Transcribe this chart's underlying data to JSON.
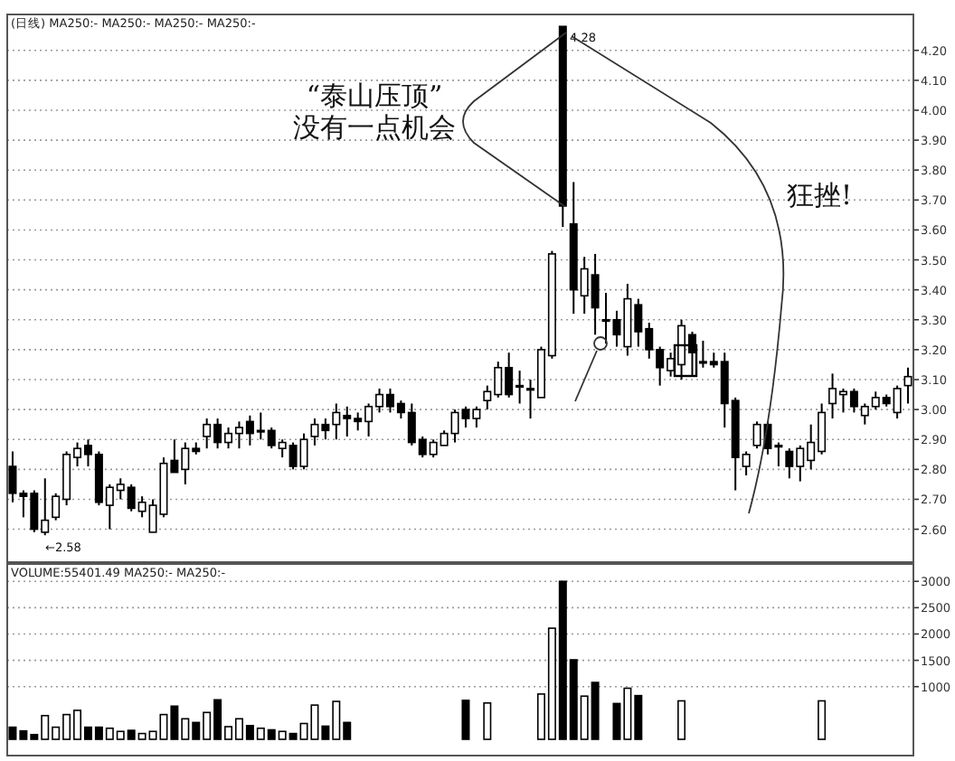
{
  "chart_data": [
    {
      "type": "candlestick",
      "title": "(日线) MA250:- MA250:- MA250:- MA250:-",
      "categories": [
        null,
        null,
        null,
        null,
        null,
        null,
        null,
        null,
        null,
        null,
        null,
        null,
        null,
        null,
        null,
        null,
        null,
        null,
        null,
        null,
        null,
        null,
        null,
        null,
        null,
        null,
        null,
        null,
        null,
        null,
        null,
        null,
        null,
        null,
        null,
        null,
        null,
        null,
        null,
        null,
        null,
        null,
        null,
        null,
        null,
        null,
        null,
        null,
        null,
        null,
        null,
        null,
        null,
        null,
        null,
        null,
        null,
        null,
        null,
        null,
        null,
        null,
        null,
        null,
        null,
        null,
        null,
        null,
        null,
        null,
        null,
        null,
        null,
        null,
        null,
        null,
        null,
        null,
        null,
        null,
        null,
        null,
        null,
        null
      ],
      "ohlc": [
        [
          2.81,
          2.86,
          2.69,
          2.72
        ],
        [
          2.72,
          2.73,
          2.64,
          2.71
        ],
        [
          2.72,
          2.73,
          2.59,
          2.6
        ],
        [
          2.59,
          2.77,
          2.58,
          2.63
        ],
        [
          2.64,
          2.72,
          2.63,
          2.71
        ],
        [
          2.7,
          2.86,
          2.68,
          2.85
        ],
        [
          2.84,
          2.89,
          2.81,
          2.87
        ],
        [
          2.88,
          2.9,
          2.81,
          2.85
        ],
        [
          2.85,
          2.86,
          2.68,
          2.69
        ],
        [
          2.68,
          2.75,
          2.6,
          2.74
        ],
        [
          2.73,
          2.77,
          2.7,
          2.75
        ],
        [
          2.74,
          2.75,
          2.66,
          2.67
        ],
        [
          2.66,
          2.71,
          2.64,
          2.69
        ],
        [
          2.59,
          2.7,
          2.59,
          2.68
        ],
        [
          2.65,
          2.84,
          2.64,
          2.82
        ],
        [
          2.83,
          2.9,
          2.79,
          2.79
        ],
        [
          2.8,
          2.89,
          2.75,
          2.87
        ],
        [
          2.87,
          2.89,
          2.85,
          2.86
        ],
        [
          2.91,
          2.97,
          2.87,
          2.95
        ],
        [
          2.95,
          2.97,
          2.87,
          2.89
        ],
        [
          2.89,
          2.94,
          2.87,
          2.92
        ],
        [
          2.92,
          2.96,
          2.87,
          2.94
        ],
        [
          2.96,
          2.98,
          2.88,
          2.92
        ],
        [
          2.93,
          2.99,
          2.9,
          2.93
        ],
        [
          2.93,
          2.94,
          2.87,
          2.88
        ],
        [
          2.87,
          2.9,
          2.84,
          2.89
        ],
        [
          2.88,
          2.89,
          2.8,
          2.81
        ],
        [
          2.81,
          2.92,
          2.8,
          2.9
        ],
        [
          2.91,
          2.97,
          2.88,
          2.95
        ],
        [
          2.95,
          2.97,
          2.9,
          2.93
        ],
        [
          2.95,
          3.02,
          2.9,
          2.99
        ],
        [
          2.98,
          3.01,
          2.91,
          2.97
        ],
        [
          2.97,
          2.99,
          2.93,
          2.96
        ],
        [
          2.96,
          3.02,
          2.91,
          3.01
        ],
        [
          3.01,
          3.07,
          2.99,
          3.05
        ],
        [
          3.05,
          3.07,
          2.99,
          3.01
        ],
        [
          3.02,
          3.03,
          2.97,
          2.99
        ],
        [
          2.99,
          3.02,
          2.88,
          2.89
        ],
        [
          2.9,
          2.91,
          2.84,
          2.85
        ],
        [
          2.85,
          2.9,
          2.84,
          2.89
        ],
        [
          2.88,
          2.93,
          2.88,
          2.92
        ],
        [
          2.92,
          3.0,
          2.89,
          2.99
        ],
        [
          3.0,
          3.01,
          2.94,
          2.97
        ],
        [
          2.97,
          3.01,
          2.94,
          3.0
        ],
        [
          3.03,
          3.08,
          3.0,
          3.06
        ],
        [
          3.05,
          3.16,
          3.04,
          3.14
        ],
        [
          3.14,
          3.19,
          3.04,
          3.05
        ],
        [
          3.08,
          3.13,
          3.02,
          3.08
        ],
        [
          3.07,
          3.1,
          2.97,
          3.07
        ],
        [
          3.04,
          3.21,
          3.04,
          3.2
        ],
        [
          3.18,
          3.53,
          3.17,
          3.52
        ],
        [
          4.28,
          4.28,
          3.61,
          3.68
        ],
        [
          3.62,
          3.76,
          3.32,
          3.4
        ],
        [
          3.38,
          3.51,
          3.32,
          3.47
        ],
        [
          3.45,
          3.52,
          3.25,
          3.34
        ],
        [
          3.3,
          3.39,
          3.22,
          3.3
        ],
        [
          3.3,
          3.33,
          3.21,
          3.25
        ],
        [
          3.21,
          3.42,
          3.18,
          3.37
        ],
        [
          3.35,
          3.37,
          3.21,
          3.26
        ],
        [
          3.27,
          3.29,
          3.17,
          3.2
        ],
        [
          3.2,
          3.21,
          3.08,
          3.14
        ],
        [
          3.13,
          3.19,
          3.11,
          3.17
        ],
        [
          3.15,
          3.3,
          3.1,
          3.28
        ],
        [
          3.25,
          3.26,
          3.11,
          3.19
        ],
        [
          3.16,
          3.23,
          3.14,
          3.16
        ],
        [
          3.16,
          3.19,
          3.14,
          3.15
        ],
        [
          3.16,
          3.19,
          2.94,
          3.02
        ],
        [
          3.03,
          3.04,
          2.73,
          2.84
        ],
        [
          2.81,
          2.86,
          2.78,
          2.85
        ],
        [
          2.88,
          2.96,
          2.87,
          2.95
        ],
        [
          2.95,
          2.96,
          2.85,
          2.87
        ],
        [
          2.88,
          2.89,
          2.81,
          2.88
        ],
        [
          2.86,
          2.87,
          2.77,
          2.81
        ],
        [
          2.81,
          2.88,
          2.76,
          2.87
        ],
        [
          2.83,
          2.95,
          2.8,
          2.89
        ],
        [
          2.86,
          3.02,
          2.85,
          2.99
        ],
        [
          3.02,
          3.12,
          2.97,
          3.07
        ],
        [
          3.05,
          3.07,
          2.99,
          3.06
        ],
        [
          3.06,
          3.07,
          2.99,
          3.01
        ],
        [
          2.98,
          3.02,
          2.95,
          3.01
        ],
        [
          3.01,
          3.06,
          3.0,
          3.04
        ],
        [
          3.04,
          3.05,
          3.01,
          3.02
        ],
        [
          2.99,
          3.08,
          2.97,
          3.07
        ],
        [
          3.08,
          3.14,
          3.02,
          3.11
        ]
      ],
      "ylim": [
        2.49,
        4.32
      ],
      "yticks": [
        {
          "value": 2.6,
          "label": "2.60"
        },
        {
          "value": 2.7,
          "label": "2.70"
        },
        {
          "value": 2.8,
          "label": "2.80"
        },
        {
          "value": 2.9,
          "label": "2.90"
        },
        {
          "value": 3.0,
          "label": "3.00"
        },
        {
          "value": 3.1,
          "label": "3.10"
        },
        {
          "value": 3.2,
          "label": "3.20"
        },
        {
          "value": 3.3,
          "label": "3.30"
        },
        {
          "value": 3.4,
          "label": "3.40"
        },
        {
          "value": 3.5,
          "label": "3.50"
        },
        {
          "value": 3.6,
          "label": "3.60"
        },
        {
          "value": 3.7,
          "label": "3.70"
        },
        {
          "value": 3.8,
          "label": "3.80"
        },
        {
          "value": 3.9,
          "label": "3.90"
        },
        {
          "value": 4.0,
          "label": "4.00"
        },
        {
          "value": 4.1,
          "label": "4.10"
        },
        {
          "value": 4.2,
          "label": "4.20"
        }
      ],
      "grid": "y",
      "tick_labels": "y",
      "annotations": [
        "“泰山压顶”\n没有一点机会",
        "狂挫!",
        "4.28",
        "←2.58"
      ]
    },
    {
      "type": "bar",
      "title": "VOLUME:55401.49 MA250:- MA250:-",
      "categories": [
        null,
        null,
        null,
        null,
        null,
        null,
        null,
        null,
        null,
        null,
        null,
        null,
        null,
        null,
        null,
        null,
        null,
        null,
        null,
        null,
        null,
        null,
        null,
        null,
        null,
        null,
        null,
        null,
        null,
        null,
        null,
        null,
        null,
        null,
        null,
        null,
        null,
        null,
        null,
        null,
        null,
        null,
        null,
        null,
        null,
        null,
        null,
        null,
        null,
        null,
        null,
        null,
        null,
        null,
        null,
        null,
        null,
        null,
        null,
        null,
        null,
        null,
        null,
        null,
        null,
        null,
        null,
        null,
        null,
        null,
        null,
        null,
        null,
        null,
        null,
        null,
        null,
        null,
        null,
        null,
        null,
        null,
        null,
        null
      ],
      "values": [
        230,
        160,
        90,
        450,
        230,
        470,
        550,
        230,
        230,
        210,
        150,
        170,
        110,
        150,
        470,
        630,
        390,
        320,
        510,
        750,
        240,
        390,
        260,
        210,
        180,
        150,
        110,
        300,
        650,
        250,
        720,
        320,
        null,
        null,
        null,
        null,
        null,
        null,
        null,
        null,
        null,
        null,
        740,
        null,
        690,
        null,
        null,
        null,
        null,
        860,
        2110,
        3000,
        1510,
        820,
        1080,
        null,
        680,
        970,
        830,
        null,
        null,
        null,
        730,
        null,
        null,
        null,
        null,
        null,
        null,
        null,
        null,
        null,
        null,
        null,
        null,
        730,
        null,
        null,
        null,
        null,
        null,
        null,
        null,
        null
      ],
      "colors": [
        "#000000",
        "#000000",
        "#000000",
        "#ffffff",
        "#ffffff",
        "#ffffff",
        "#ffffff",
        "#000000",
        "#000000",
        "#ffffff",
        "#ffffff",
        "#000000",
        "#ffffff",
        "#ffffff",
        "#ffffff",
        "#000000",
        "#ffffff",
        "#000000",
        "#ffffff",
        "#000000",
        "#ffffff",
        "#ffffff",
        "#000000",
        "#ffffff",
        "#000000",
        "#ffffff",
        "#000000",
        "#ffffff",
        "#ffffff",
        "#000000",
        "#ffffff",
        "#000000",
        null,
        null,
        null,
        null,
        null,
        null,
        null,
        null,
        null,
        null,
        "#000000",
        null,
        "#ffffff",
        null,
        null,
        null,
        null,
        "#ffffff",
        "#ffffff",
        "#000000",
        "#000000",
        "#ffffff",
        "#000000",
        null,
        "#000000",
        "#ffffff",
        "#000000",
        null,
        null,
        null,
        "#ffffff",
        null,
        null,
        null,
        null,
        null,
        null,
        null,
        null,
        null,
        null,
        null,
        null,
        "#ffffff",
        null,
        null,
        null,
        null,
        null,
        null,
        null,
        null
      ],
      "ylim": [
        0,
        3330
      ],
      "yticks": [
        1000,
        1500,
        2000,
        2500,
        3000
      ],
      "grid": "y",
      "tick_labels": "y"
    }
  ]
}
